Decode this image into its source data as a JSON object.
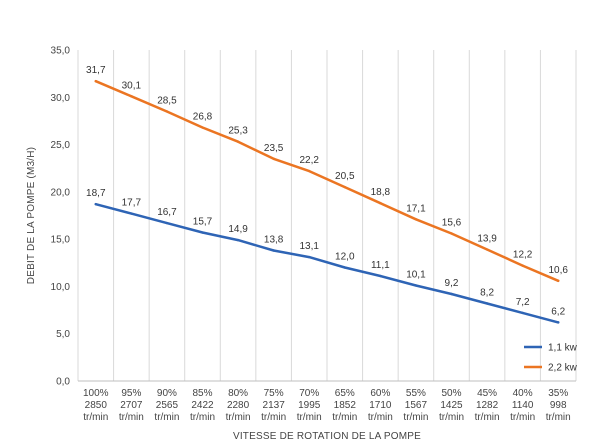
{
  "chart_data": {
    "type": "line",
    "title": "",
    "xlabel": "VITESSE DE ROTATION DE LA POMPE",
    "ylabel": "DEBIT DE LA POMPE (M3/H)",
    "ylim": [
      0,
      35
    ],
    "y_ticks": [
      "0,0",
      "5,0",
      "10,0",
      "15,0",
      "20,0",
      "25,0",
      "30,0",
      "35,0"
    ],
    "grid": "vertical",
    "legend_position": "bottom-right",
    "categories": [
      {
        "pct": "100%",
        "rpm": "2850",
        "unit": "tr/min"
      },
      {
        "pct": "95%",
        "rpm": "2707",
        "unit": "tr/min"
      },
      {
        "pct": "90%",
        "rpm": "2565",
        "unit": "tr/min"
      },
      {
        "pct": "85%",
        "rpm": "2422",
        "unit": "tr/min"
      },
      {
        "pct": "80%",
        "rpm": "2280",
        "unit": "tr/min"
      },
      {
        "pct": "75%",
        "rpm": "2137",
        "unit": "tr/min"
      },
      {
        "pct": "70%",
        "rpm": "1995",
        "unit": "tr/min"
      },
      {
        "pct": "65%",
        "rpm": "1852",
        "unit": "tr/min"
      },
      {
        "pct": "60%",
        "rpm": "1710",
        "unit": "tr/min"
      },
      {
        "pct": "55%",
        "rpm": "1567",
        "unit": "tr/min"
      },
      {
        "pct": "50%",
        "rpm": "1425",
        "unit": "tr/min"
      },
      {
        "pct": "45%",
        "rpm": "1282",
        "unit": "tr/min"
      },
      {
        "pct": "40%",
        "rpm": "1140",
        "unit": "tr/min"
      },
      {
        "pct": "35%",
        "rpm": "998",
        "unit": "tr/min"
      }
    ],
    "series": [
      {
        "name": "1,1 kw",
        "color": "#2E64B5",
        "values": [
          18.7,
          17.7,
          16.7,
          15.7,
          14.9,
          13.8,
          13.1,
          12.0,
          11.1,
          10.1,
          9.2,
          8.2,
          7.2,
          6.2
        ],
        "labels": [
          "18,7",
          "17,7",
          "16,7",
          "15,7",
          "14,9",
          "13,8",
          "13,1",
          "12,0",
          "11,1",
          "10,1",
          "9,2",
          "8,2",
          "7,2",
          "6,2"
        ]
      },
      {
        "name": "2,2 kw",
        "color": "#EB7522",
        "values": [
          31.7,
          30.1,
          28.5,
          26.8,
          25.3,
          23.5,
          22.2,
          20.5,
          18.8,
          17.1,
          15.6,
          13.9,
          12.2,
          10.6
        ],
        "labels": [
          "31,7",
          "30,1",
          "28,5",
          "26,8",
          "25,3",
          "23,5",
          "22,2",
          "20,5",
          "18,8",
          "17,1",
          "15,6",
          "13,9",
          "12,2",
          "10,6"
        ]
      }
    ]
  }
}
